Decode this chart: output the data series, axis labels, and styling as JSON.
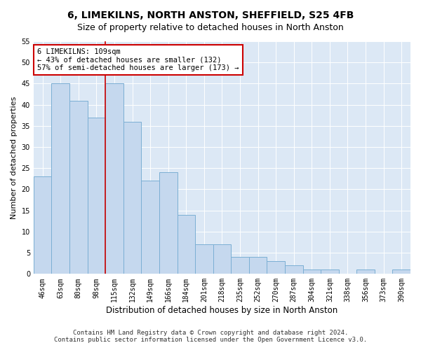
{
  "title": "6, LIMEKILNS, NORTH ANSTON, SHEFFIELD, S25 4FB",
  "subtitle": "Size of property relative to detached houses in North Anston",
  "xlabel": "Distribution of detached houses by size in North Anston",
  "ylabel": "Number of detached properties",
  "categories": [
    "46sqm",
    "63sqm",
    "80sqm",
    "98sqm",
    "115sqm",
    "132sqm",
    "149sqm",
    "166sqm",
    "184sqm",
    "201sqm",
    "218sqm",
    "235sqm",
    "252sqm",
    "270sqm",
    "287sqm",
    "304sqm",
    "321sqm",
    "338sqm",
    "356sqm",
    "373sqm",
    "390sqm"
  ],
  "values": [
    23,
    45,
    41,
    37,
    45,
    36,
    22,
    24,
    14,
    7,
    7,
    4,
    4,
    3,
    2,
    1,
    1,
    0,
    1,
    0,
    1
  ],
  "bar_color": "#c5d8ee",
  "bar_edge_color": "#7bafd4",
  "highlight_index": 4,
  "highlight_line_color": "#cc0000",
  "annotation_text": "6 LIMEKILNS: 109sqm\n← 43% of detached houses are smaller (132)\n57% of semi-detached houses are larger (173) →",
  "annotation_box_color": "#ffffff",
  "annotation_box_edge_color": "#cc0000",
  "ylim": [
    0,
    55
  ],
  "yticks": [
    0,
    5,
    10,
    15,
    20,
    25,
    30,
    35,
    40,
    45,
    50,
    55
  ],
  "background_color": "#dce8f5",
  "footer_line1": "Contains HM Land Registry data © Crown copyright and database right 2024.",
  "footer_line2": "Contains public sector information licensed under the Open Government Licence v3.0.",
  "title_fontsize": 10,
  "subtitle_fontsize": 9,
  "xlabel_fontsize": 8.5,
  "ylabel_fontsize": 8,
  "tick_fontsize": 7,
  "footer_fontsize": 6.5,
  "annotation_fontsize": 7.5
}
